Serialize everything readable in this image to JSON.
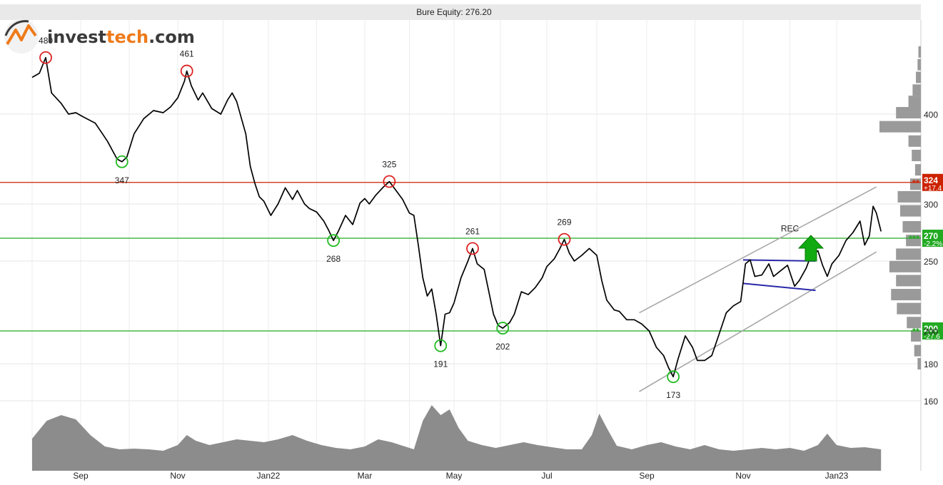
{
  "logo": {
    "part1": "invest",
    "part2": "tech",
    "part3": ".com"
  },
  "chart_data": {
    "type": "line",
    "title": "Bure Equity: 276.20",
    "ylim": [
      155,
      505
    ],
    "y_ticks": [
      160,
      180,
      200,
      250,
      300,
      400
    ],
    "x_ticks": [
      {
        "label": "Sep",
        "x": 1
      },
      {
        "label": "Nov",
        "x": 3
      },
      {
        "label": "Jan22",
        "x": 5
      },
      {
        "label": "Mar",
        "x": 7
      },
      {
        "label": "May",
        "x": 9
      },
      {
        "label": "Jul",
        "x": 11
      },
      {
        "label": "Sep",
        "x": 13
      },
      {
        "label": "Nov",
        "x": 15
      },
      {
        "label": "Jan23",
        "x": 17
      }
    ],
    "series": [
      {
        "values": [
          [
            0.0,
            452
          ],
          [
            0.15,
            458
          ],
          [
            0.28,
            480
          ],
          [
            0.4,
            430
          ],
          [
            0.6,
            415
          ],
          [
            0.75,
            400
          ],
          [
            0.9,
            402
          ],
          [
            1.05,
            397
          ],
          [
            1.3,
            390
          ],
          [
            1.45,
            378
          ],
          [
            1.55,
            370
          ],
          [
            1.75,
            350
          ],
          [
            1.85,
            347
          ],
          [
            1.95,
            352
          ],
          [
            2.1,
            378
          ],
          [
            2.3,
            395
          ],
          [
            2.5,
            405
          ],
          [
            2.7,
            402
          ],
          [
            2.85,
            410
          ],
          [
            3.0,
            423
          ],
          [
            3.15,
            447
          ],
          [
            3.2,
            461
          ],
          [
            3.3,
            440
          ],
          [
            3.45,
            420
          ],
          [
            3.55,
            430
          ],
          [
            3.75,
            408
          ],
          [
            3.95,
            400
          ],
          [
            4.1,
            420
          ],
          [
            4.2,
            430
          ],
          [
            4.3,
            418
          ],
          [
            4.5,
            378
          ],
          [
            4.6,
            342
          ],
          [
            4.7,
            323
          ],
          [
            4.8,
            308
          ],
          [
            4.9,
            303
          ],
          [
            5.05,
            290
          ],
          [
            5.2,
            300
          ],
          [
            5.35,
            318
          ],
          [
            5.5,
            305
          ],
          [
            5.6,
            315
          ],
          [
            5.75,
            300
          ],
          [
            5.85,
            296
          ],
          [
            6.0,
            293
          ],
          [
            6.15,
            285
          ],
          [
            6.25,
            277
          ],
          [
            6.35,
            268
          ],
          [
            6.45,
            276
          ],
          [
            6.6,
            290
          ],
          [
            6.75,
            282
          ],
          [
            6.9,
            301
          ],
          [
            7.0,
            306
          ],
          [
            7.1,
            300
          ],
          [
            7.25,
            310
          ],
          [
            7.4,
            318
          ],
          [
            7.55,
            325
          ],
          [
            7.7,
            315
          ],
          [
            7.85,
            305
          ],
          [
            8.0,
            292
          ],
          [
            8.1,
            290
          ],
          [
            8.2,
            264
          ],
          [
            8.3,
            238
          ],
          [
            8.4,
            225
          ],
          [
            8.5,
            230
          ],
          [
            8.6,
            212
          ],
          [
            8.7,
            191
          ],
          [
            8.8,
            212
          ],
          [
            8.9,
            213
          ],
          [
            9.0,
            220
          ],
          [
            9.15,
            238
          ],
          [
            9.3,
            250
          ],
          [
            9.4,
            261
          ],
          [
            9.5,
            248
          ],
          [
            9.65,
            244
          ],
          [
            9.75,
            228
          ],
          [
            9.85,
            212
          ],
          [
            9.95,
            204
          ],
          [
            10.05,
            202
          ],
          [
            10.2,
            206
          ],
          [
            10.3,
            212
          ],
          [
            10.45,
            228
          ],
          [
            10.6,
            226
          ],
          [
            10.75,
            231
          ],
          [
            10.9,
            238
          ],
          [
            11.0,
            246
          ],
          [
            11.15,
            252
          ],
          [
            11.25,
            260
          ],
          [
            11.35,
            269
          ],
          [
            11.45,
            257
          ],
          [
            11.55,
            250
          ],
          [
            11.7,
            255
          ],
          [
            11.85,
            261
          ],
          [
            12.0,
            255
          ],
          [
            12.1,
            236
          ],
          [
            12.2,
            222
          ],
          [
            12.35,
            215
          ],
          [
            12.45,
            214
          ],
          [
            12.6,
            208
          ],
          [
            12.75,
            208
          ],
          [
            12.9,
            205
          ],
          [
            13.05,
            200
          ],
          [
            13.2,
            190
          ],
          [
            13.35,
            185
          ],
          [
            13.45,
            178
          ],
          [
            13.55,
            173
          ],
          [
            13.65,
            183
          ],
          [
            13.8,
            197
          ],
          [
            13.95,
            190
          ],
          [
            14.05,
            182
          ],
          [
            14.2,
            182
          ],
          [
            14.35,
            185
          ],
          [
            14.5,
            198
          ],
          [
            14.65,
            213
          ],
          [
            14.8,
            218
          ],
          [
            14.95,
            221
          ],
          [
            15.05,
            248
          ],
          [
            15.15,
            251
          ],
          [
            15.25,
            239
          ],
          [
            15.4,
            240
          ],
          [
            15.55,
            248
          ],
          [
            15.65,
            239
          ],
          [
            15.8,
            243
          ],
          [
            15.95,
            247
          ],
          [
            16.1,
            232
          ],
          [
            16.2,
            236
          ],
          [
            16.35,
            245
          ],
          [
            16.45,
            255
          ],
          [
            16.6,
            259
          ],
          [
            16.7,
            247
          ],
          [
            16.8,
            239
          ],
          [
            16.9,
            248
          ],
          [
            17.05,
            255
          ],
          [
            17.2,
            268
          ],
          [
            17.35,
            275
          ],
          [
            17.5,
            285
          ],
          [
            17.6,
            264
          ],
          [
            17.7,
            272
          ],
          [
            17.78,
            298
          ],
          [
            17.85,
            292
          ],
          [
            17.95,
            276
          ]
        ]
      }
    ],
    "horizontal_lines": [
      {
        "value": 324,
        "color": "#cc2200",
        "tag": "324",
        "sub": "+17.4",
        "stars": "**"
      },
      {
        "value": 270,
        "color": "#22aa22",
        "tag": "270",
        "sub": "-2.2%",
        "stars": "***"
      },
      {
        "value": 200,
        "color": "#22aa22",
        "tag": "200",
        "sub": "-27.6",
        "stars": "**"
      }
    ],
    "tops": [
      {
        "x": 0.28,
        "y": 480,
        "label": "480"
      },
      {
        "x": 3.2,
        "y": 461,
        "label": "461"
      },
      {
        "x": 7.55,
        "y": 325,
        "label": "325"
      },
      {
        "x": 9.4,
        "y": 261,
        "label": "261"
      },
      {
        "x": 11.35,
        "y": 269,
        "label": "269"
      }
    ],
    "bottoms": [
      {
        "x": 1.85,
        "y": 347,
        "label": "347"
      },
      {
        "x": 6.35,
        "y": 268,
        "label": "268"
      },
      {
        "x": 8.7,
        "y": 191,
        "label": "191"
      },
      {
        "x": 10.05,
        "y": 202,
        "label": "202"
      },
      {
        "x": 13.55,
        "y": 173,
        "label": "173"
      }
    ],
    "channel": {
      "upper": [
        [
          12.85,
          213
        ],
        [
          17.85,
          319
        ]
      ],
      "lower": [
        [
          12.85,
          165
        ],
        [
          17.85,
          258
        ]
      ]
    },
    "rectangle_pattern": {
      "upper": [
        [
          15.0,
          251
        ],
        [
          16.55,
          250
        ]
      ],
      "lower": [
        [
          15.0,
          234
        ],
        [
          16.55,
          229
        ]
      ],
      "label": "REC"
    },
    "buy_arrow": {
      "x": 16.45,
      "y_base": 250,
      "y_tip": 270
    },
    "volume": [
      [
        0.0,
        0.45
      ],
      [
        0.3,
        0.7
      ],
      [
        0.6,
        0.78
      ],
      [
        0.9,
        0.72
      ],
      [
        1.2,
        0.5
      ],
      [
        1.5,
        0.34
      ],
      [
        1.8,
        0.3
      ],
      [
        2.1,
        0.31
      ],
      [
        2.4,
        0.3
      ],
      [
        2.7,
        0.28
      ],
      [
        3.0,
        0.36
      ],
      [
        3.2,
        0.5
      ],
      [
        3.4,
        0.42
      ],
      [
        3.7,
        0.36
      ],
      [
        4.0,
        0.4
      ],
      [
        4.3,
        0.44
      ],
      [
        4.6,
        0.42
      ],
      [
        4.9,
        0.4
      ],
      [
        5.2,
        0.44
      ],
      [
        5.5,
        0.5
      ],
      [
        5.8,
        0.42
      ],
      [
        6.1,
        0.36
      ],
      [
        6.4,
        0.32
      ],
      [
        6.7,
        0.3
      ],
      [
        7.0,
        0.34
      ],
      [
        7.3,
        0.44
      ],
      [
        7.6,
        0.4
      ],
      [
        7.9,
        0.34
      ],
      [
        8.1,
        0.3
      ],
      [
        8.3,
        0.7
      ],
      [
        8.5,
        0.92
      ],
      [
        8.7,
        0.78
      ],
      [
        8.9,
        0.86
      ],
      [
        9.1,
        0.6
      ],
      [
        9.3,
        0.42
      ],
      [
        9.6,
        0.36
      ],
      [
        9.9,
        0.32
      ],
      [
        10.2,
        0.36
      ],
      [
        10.5,
        0.4
      ],
      [
        10.8,
        0.36
      ],
      [
        11.1,
        0.33
      ],
      [
        11.4,
        0.3
      ],
      [
        11.7,
        0.3
      ],
      [
        11.9,
        0.5
      ],
      [
        12.05,
        0.8
      ],
      [
        12.2,
        0.6
      ],
      [
        12.4,
        0.35
      ],
      [
        12.7,
        0.3
      ],
      [
        13.0,
        0.36
      ],
      [
        13.3,
        0.4
      ],
      [
        13.6,
        0.34
      ],
      [
        13.9,
        0.3
      ],
      [
        14.2,
        0.36
      ],
      [
        14.5,
        0.3
      ],
      [
        14.8,
        0.28
      ],
      [
        15.1,
        0.3
      ],
      [
        15.4,
        0.32
      ],
      [
        15.7,
        0.3
      ],
      [
        16.0,
        0.32
      ],
      [
        16.3,
        0.28
      ],
      [
        16.6,
        0.36
      ],
      [
        16.8,
        0.52
      ],
      [
        17.0,
        0.36
      ],
      [
        17.3,
        0.32
      ],
      [
        17.6,
        0.33
      ],
      [
        17.95,
        0.3
      ]
    ],
    "volume_profile": [
      {
        "price": 488,
        "w": 0.06
      },
      {
        "price": 470,
        "w": 0.08
      },
      {
        "price": 452,
        "w": 0.12
      },
      {
        "price": 434,
        "w": 0.2
      },
      {
        "price": 418,
        "w": 0.3
      },
      {
        "price": 402,
        "w": 0.6
      },
      {
        "price": 386,
        "w": 1.0
      },
      {
        "price": 370,
        "w": 0.3
      },
      {
        "price": 354,
        "w": 0.22
      },
      {
        "price": 338,
        "w": 0.14
      },
      {
        "price": 322,
        "w": 0.26
      },
      {
        "price": 308,
        "w": 0.56
      },
      {
        "price": 294,
        "w": 0.5
      },
      {
        "price": 280,
        "w": 0.44
      },
      {
        "price": 268,
        "w": 0.36
      },
      {
        "price": 256,
        "w": 0.6
      },
      {
        "price": 246,
        "w": 0.76
      },
      {
        "price": 236,
        "w": 0.6
      },
      {
        "price": 226,
        "w": 0.72
      },
      {
        "price": 216,
        "w": 0.58
      },
      {
        "price": 206,
        "w": 0.34
      },
      {
        "price": 197,
        "w": 0.24
      },
      {
        "price": 188,
        "w": 0.16
      },
      {
        "price": 180,
        "w": 0.08
      }
    ]
  }
}
